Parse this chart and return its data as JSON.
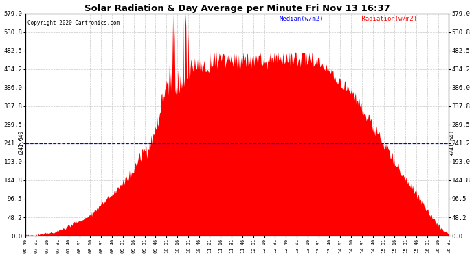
{
  "title": "Solar Radiation & Day Average per Minute Fri Nov 13 16:37",
  "copyright": "Copyright 2020 Cartronics.com",
  "legend_median": "Median(w/m2)",
  "legend_radiation": "Radiation(w/m2)",
  "median_value": 241.64,
  "ymin": 0.0,
  "ymax": 579.0,
  "yticks": [
    0.0,
    48.2,
    96.5,
    144.8,
    193.0,
    241.2,
    289.5,
    337.8,
    386.0,
    434.2,
    482.5,
    530.8,
    579.0
  ],
  "ytick_labels": [
    "0.0",
    "48.2",
    "96.5",
    "144.8",
    "193.0",
    "241.2",
    "289.5",
    "337.8",
    "386.0",
    "434.2",
    "482.5",
    "530.8",
    "579.0"
  ],
  "bar_color": "#FF0000",
  "median_line_color": "#0000FF",
  "background_color": "#FFFFFF",
  "grid_color": "#BBBBBB",
  "title_color": "#000000",
  "copyright_color": "#000000",
  "time_labels": [
    "06:46",
    "07:01",
    "07:16",
    "07:31",
    "07:46",
    "08:01",
    "08:16",
    "08:31",
    "08:46",
    "09:01",
    "09:16",
    "09:31",
    "09:46",
    "10:01",
    "10:16",
    "10:31",
    "10:46",
    "11:01",
    "11:16",
    "11:31",
    "11:46",
    "12:01",
    "12:16",
    "12:31",
    "12:46",
    "13:01",
    "13:16",
    "13:31",
    "13:46",
    "14:01",
    "14:16",
    "14:31",
    "14:46",
    "15:01",
    "15:16",
    "15:31",
    "15:46",
    "16:01",
    "16:16",
    "16:31"
  ]
}
